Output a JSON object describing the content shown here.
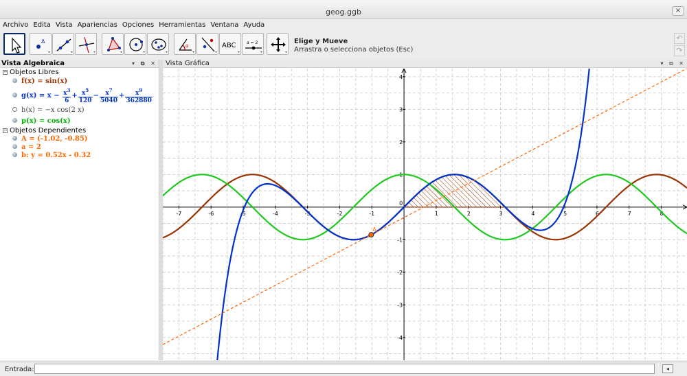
{
  "window": {
    "title": "geog.ggb",
    "close_glyph": "×"
  },
  "menu": [
    "Archivo",
    "Edita",
    "Vista",
    "Apariencias",
    "Opciones",
    "Herramientas",
    "Ventana",
    "Ayuda"
  ],
  "toolbar": {
    "tools": [
      "move-tool",
      "point-tool",
      "line-tool",
      "perpendicular-tool",
      "polygon-tool",
      "circle-tool",
      "conic-tool",
      "angle-tool",
      "reflect-tool",
      "text-tool",
      "slider-tool",
      "move-view-tool"
    ],
    "text_label": "ABC",
    "slider_label": "a = 2",
    "selected_tool_title": "Elige y Mueve",
    "selected_tool_desc": "Arrastra o selecciona objetos (Esc)"
  },
  "algebra": {
    "title": "Vista Algebraica",
    "free_header": "Objetos Libres",
    "dependent_header": "Objetos Dependientes",
    "free": [
      {
        "label": "f(x) = sin(x)",
        "color": "#993300",
        "visible": true
      },
      {
        "label_pre": "g(x) = x −",
        "terms": [
          {
            "num": "x",
            "exp": "3",
            "den": "6",
            "op": "+"
          },
          {
            "num": "x",
            "exp": "5",
            "den": "120",
            "op": "−"
          },
          {
            "num": "x",
            "exp": "7",
            "den": "5040",
            "op": "+"
          },
          {
            "num": "x",
            "exp": "9",
            "den": "362880",
            "op": ""
          }
        ],
        "color": "#0033cc",
        "visible": true
      },
      {
        "label": "h(x) = −x cos(2 x)",
        "color": "#444444",
        "visible": false
      },
      {
        "label": "p(x) = cos(x)",
        "color": "#00b400",
        "visible": true
      }
    ],
    "dependent": [
      {
        "label": "A = (-1.02, -0.85)",
        "color": "#ff6600",
        "visible": true
      },
      {
        "label": "a = 2",
        "color": "#ff6600",
        "visible": true
      },
      {
        "label": "b: y = 0.52x - 0.32",
        "color": "#ff6600",
        "visible": true
      }
    ]
  },
  "graphics": {
    "title": "Vista Gráfica",
    "point_label": "A",
    "point": {
      "x": -1.02,
      "y": -0.85
    },
    "line": {
      "m": 0.52,
      "b": -0.32
    },
    "shaded_interval": [
      0,
      3.14159
    ],
    "xlim": [
      -7.5,
      8.8
    ],
    "ylim": [
      -4.7,
      4.25
    ],
    "x_ticks": [
      -7,
      -6,
      -5,
      -4,
      -3,
      -2,
      -1,
      1,
      2,
      3,
      4,
      5,
      6,
      7,
      8
    ],
    "y_ticks": [
      -4,
      -3,
      -2,
      -1,
      1,
      2,
      3,
      4
    ],
    "origin_label": "0",
    "colors": {
      "sin": "#993300",
      "taylor": "#0033cc",
      "cos": "#1ec81e",
      "line": "#ff6600",
      "grid": "#c8c8c8"
    }
  },
  "input": {
    "label": "Entrada:",
    "value": ""
  }
}
